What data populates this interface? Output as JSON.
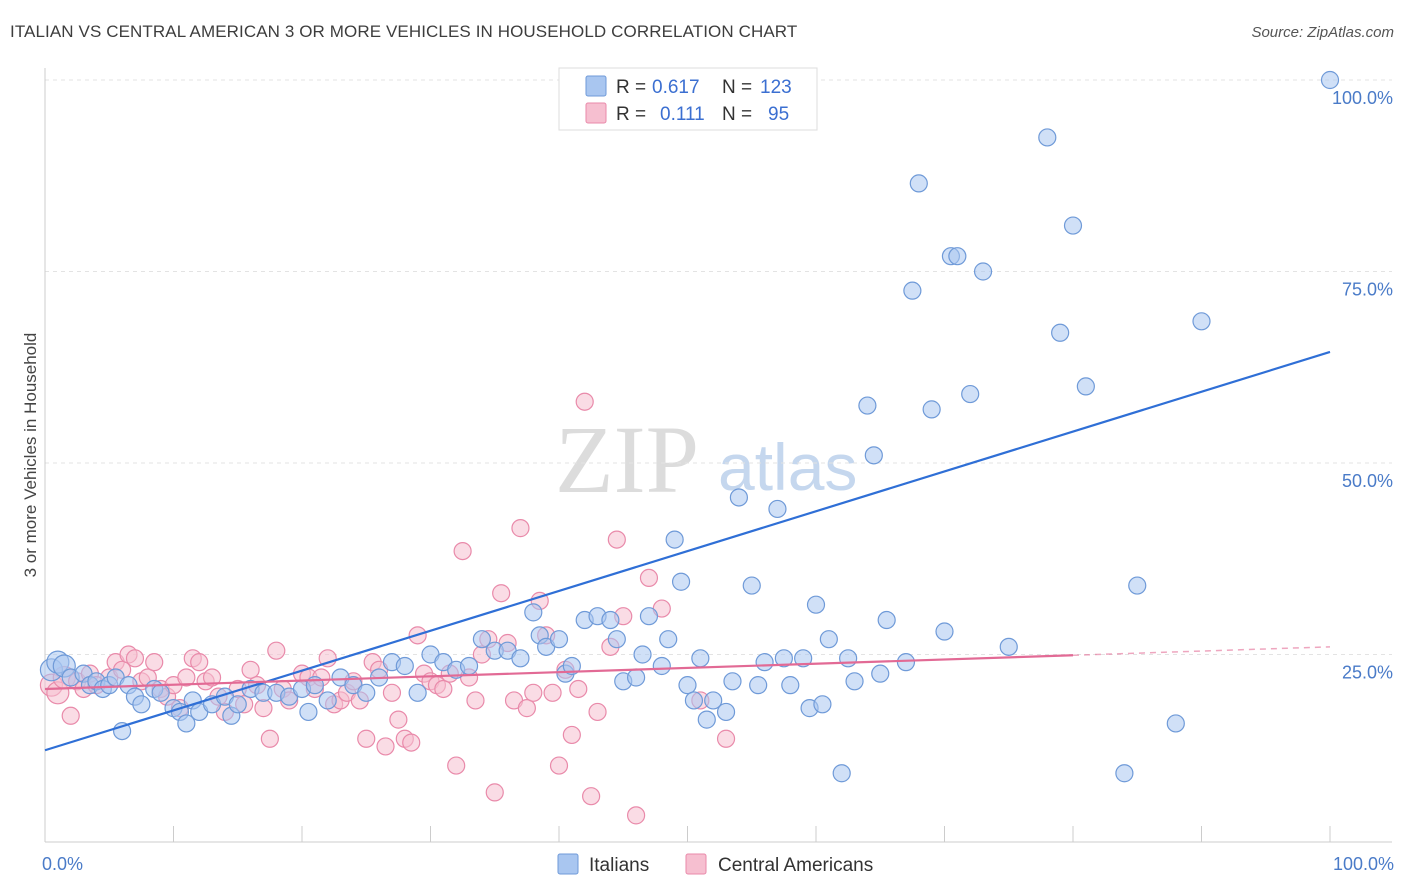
{
  "title": "ITALIAN VS CENTRAL AMERICAN 3 OR MORE VEHICLES IN HOUSEHOLD CORRELATION CHART",
  "source": "Source: ZipAtlas.com",
  "watermark": {
    "zip": "ZIP",
    "atlas": "atlas"
  },
  "colors": {
    "blue_fill": "#a9c6f0",
    "blue_stroke": "#6f9ad8",
    "blue_line": "#2f6fd6",
    "pink_fill": "#f6bfd0",
    "pink_stroke": "#e98aaa",
    "pink_line": "#e26a95",
    "axis_text": "#4a7bc8"
  },
  "legend": {
    "rows": [
      {
        "r_label": "R =",
        "r_value": "0.617",
        "n_label": "N =",
        "n_value": "123"
      },
      {
        "r_label": "R =",
        "r_value": "0.111",
        "n_label": "N =",
        "n_value": "95"
      }
    ]
  },
  "bottom_legend": [
    "Italians",
    "Central Americans"
  ],
  "chart_data": {
    "type": "scatter",
    "title": "ITALIAN VS CENTRAL AMERICAN 3 OR MORE VEHICLES IN HOUSEHOLD CORRELATION CHART",
    "xlabel": "",
    "ylabel": "3 or more Vehicles in Household",
    "xlim": [
      0,
      100
    ],
    "ylim": [
      0,
      100
    ],
    "x_tick_labels": [
      "0.0%",
      "100.0%"
    ],
    "y_tick_labels": [
      "25.0%",
      "50.0%",
      "75.0%",
      "100.0%"
    ],
    "y_ticks": [
      25,
      50,
      75,
      100
    ],
    "series": [
      {
        "name": "Italians",
        "R": 0.617,
        "N": 123,
        "trend": {
          "x": [
            0,
            100
          ],
          "y": [
            12.5,
            64.5
          ],
          "solid_to": 100
        },
        "points": [
          [
            0.5,
            23
          ],
          [
            1,
            24
          ],
          [
            1.5,
            23.5
          ],
          [
            2,
            22
          ],
          [
            3,
            22.5
          ],
          [
            3.5,
            21
          ],
          [
            4,
            21.5
          ],
          [
            4.5,
            20.5
          ],
          [
            5,
            21
          ],
          [
            5.5,
            22
          ],
          [
            6,
            15
          ],
          [
            6.5,
            21
          ],
          [
            7,
            19.5
          ],
          [
            7.5,
            18.5
          ],
          [
            8.5,
            20.5
          ],
          [
            9,
            20
          ],
          [
            10,
            18
          ],
          [
            10.5,
            17.5
          ],
          [
            11,
            16
          ],
          [
            11.5,
            19
          ],
          [
            12,
            17.5
          ],
          [
            13,
            18.5
          ],
          [
            14,
            19.5
          ],
          [
            14.5,
            17
          ],
          [
            15,
            18.5
          ],
          [
            16,
            20.5
          ],
          [
            17,
            20
          ],
          [
            18,
            20
          ],
          [
            19,
            19.5
          ],
          [
            20,
            20.5
          ],
          [
            20.5,
            17.5
          ],
          [
            21,
            21
          ],
          [
            22,
            19
          ],
          [
            23,
            22
          ],
          [
            24,
            21
          ],
          [
            25,
            20
          ],
          [
            26,
            22
          ],
          [
            27,
            24
          ],
          [
            28,
            23.5
          ],
          [
            29,
            20
          ],
          [
            30,
            25
          ],
          [
            31,
            24
          ],
          [
            32,
            23
          ],
          [
            33,
            23.5
          ],
          [
            34,
            27
          ],
          [
            35,
            25.5
          ],
          [
            36,
            25.5
          ],
          [
            37,
            24.5
          ],
          [
            38,
            30.5
          ],
          [
            38.5,
            27.5
          ],
          [
            39,
            26
          ],
          [
            40,
            27
          ],
          [
            40.5,
            22.5
          ],
          [
            41,
            23.5
          ],
          [
            42,
            29.5
          ],
          [
            43,
            30
          ],
          [
            44,
            29.5
          ],
          [
            44.5,
            27
          ],
          [
            45,
            21.5
          ],
          [
            46,
            22
          ],
          [
            46.5,
            25
          ],
          [
            47,
            30
          ],
          [
            48,
            23.5
          ],
          [
            48.5,
            27
          ],
          [
            49,
            40
          ],
          [
            49.5,
            34.5
          ],
          [
            50,
            21
          ],
          [
            50.5,
            19
          ],
          [
            51,
            24.5
          ],
          [
            51.5,
            16.5
          ],
          [
            52,
            19
          ],
          [
            53,
            17.5
          ],
          [
            53.5,
            21.5
          ],
          [
            54,
            45.5
          ],
          [
            55,
            34
          ],
          [
            55.5,
            21
          ],
          [
            56,
            24
          ],
          [
            57,
            44
          ],
          [
            57.5,
            24.5
          ],
          [
            58,
            21
          ],
          [
            59,
            24.5
          ],
          [
            59.5,
            18
          ],
          [
            60,
            31.5
          ],
          [
            60.5,
            18.5
          ],
          [
            61,
            27
          ],
          [
            62,
            9.5
          ],
          [
            62.5,
            24.5
          ],
          [
            63,
            21.5
          ],
          [
            64,
            57.5
          ],
          [
            64.5,
            51
          ],
          [
            65,
            22.5
          ],
          [
            65.5,
            29.5
          ],
          [
            67,
            24
          ],
          [
            67.5,
            72.5
          ],
          [
            68,
            86.5
          ],
          [
            69,
            57
          ],
          [
            70,
            28
          ],
          [
            70.5,
            77
          ],
          [
            71,
            77
          ],
          [
            72,
            59
          ],
          [
            73,
            75
          ],
          [
            75,
            26
          ],
          [
            78,
            92.5
          ],
          [
            79,
            67
          ],
          [
            80,
            81
          ],
          [
            81,
            60
          ],
          [
            84,
            9.5
          ],
          [
            85,
            34
          ],
          [
            88,
            16
          ],
          [
            90,
            68.5
          ],
          [
            100,
            100
          ]
        ]
      },
      {
        "name": "Central Americans",
        "R": 0.111,
        "N": 95,
        "trend": {
          "x": [
            0,
            100
          ],
          "y": [
            20.5,
            26
          ],
          "solid_to": 80
        },
        "points": [
          [
            0.5,
            21
          ],
          [
            1,
            20
          ],
          [
            1.5,
            22
          ],
          [
            2,
            17
          ],
          [
            2.5,
            21.5
          ],
          [
            3,
            20.5
          ],
          [
            3.5,
            22.5
          ],
          [
            4,
            21
          ],
          [
            5,
            22
          ],
          [
            5.5,
            24
          ],
          [
            6,
            23
          ],
          [
            6.5,
            25
          ],
          [
            7,
            24.5
          ],
          [
            7.5,
            21.5
          ],
          [
            8,
            22
          ],
          [
            8.5,
            24
          ],
          [
            9,
            20.5
          ],
          [
            9.5,
            19.5
          ],
          [
            10,
            21
          ],
          [
            10.5,
            18
          ],
          [
            11,
            22
          ],
          [
            11.5,
            24.5
          ],
          [
            12,
            24
          ],
          [
            12.5,
            21.5
          ],
          [
            13,
            22
          ],
          [
            13.5,
            19.5
          ],
          [
            14,
            17.5
          ],
          [
            15,
            20.5
          ],
          [
            15.5,
            18.5
          ],
          [
            16,
            23
          ],
          [
            16.5,
            21
          ],
          [
            17,
            18
          ],
          [
            17.5,
            14
          ],
          [
            18,
            25.5
          ],
          [
            18.5,
            20.5
          ],
          [
            19,
            19
          ],
          [
            20,
            22.5
          ],
          [
            20.5,
            22
          ],
          [
            21,
            20.5
          ],
          [
            21.5,
            22
          ],
          [
            22,
            24.5
          ],
          [
            22.5,
            18.5
          ],
          [
            23,
            19
          ],
          [
            23.5,
            20
          ],
          [
            24,
            21.5
          ],
          [
            24.5,
            19
          ],
          [
            25,
            14
          ],
          [
            25.5,
            24
          ],
          [
            26,
            23
          ],
          [
            26.5,
            13
          ],
          [
            27,
            20
          ],
          [
            27.5,
            16.5
          ],
          [
            28,
            14
          ],
          [
            28.5,
            13.5
          ],
          [
            29,
            27.5
          ],
          [
            29.5,
            22.5
          ],
          [
            30,
            21.5
          ],
          [
            30.5,
            21
          ],
          [
            31,
            20.5
          ],
          [
            31.5,
            22.5
          ],
          [
            32,
            10.5
          ],
          [
            32.5,
            38.5
          ],
          [
            33,
            22
          ],
          [
            33.5,
            19
          ],
          [
            34,
            25
          ],
          [
            34.5,
            27
          ],
          [
            35,
            7
          ],
          [
            35.5,
            33
          ],
          [
            36,
            26.5
          ],
          [
            36.5,
            19
          ],
          [
            37,
            41.5
          ],
          [
            37.5,
            18
          ],
          [
            38,
            20
          ],
          [
            38.5,
            32
          ],
          [
            39,
            27.5
          ],
          [
            39.5,
            20
          ],
          [
            40,
            10.5
          ],
          [
            40.5,
            23
          ],
          [
            41,
            14.5
          ],
          [
            41.5,
            20.5
          ],
          [
            42,
            58
          ],
          [
            42.5,
            6.5
          ],
          [
            43,
            17.5
          ],
          [
            44,
            26
          ],
          [
            44.5,
            40
          ],
          [
            45,
            30
          ],
          [
            46,
            4
          ],
          [
            47,
            35
          ],
          [
            48,
            31
          ],
          [
            51,
            19
          ],
          [
            53,
            14
          ]
        ]
      }
    ]
  }
}
